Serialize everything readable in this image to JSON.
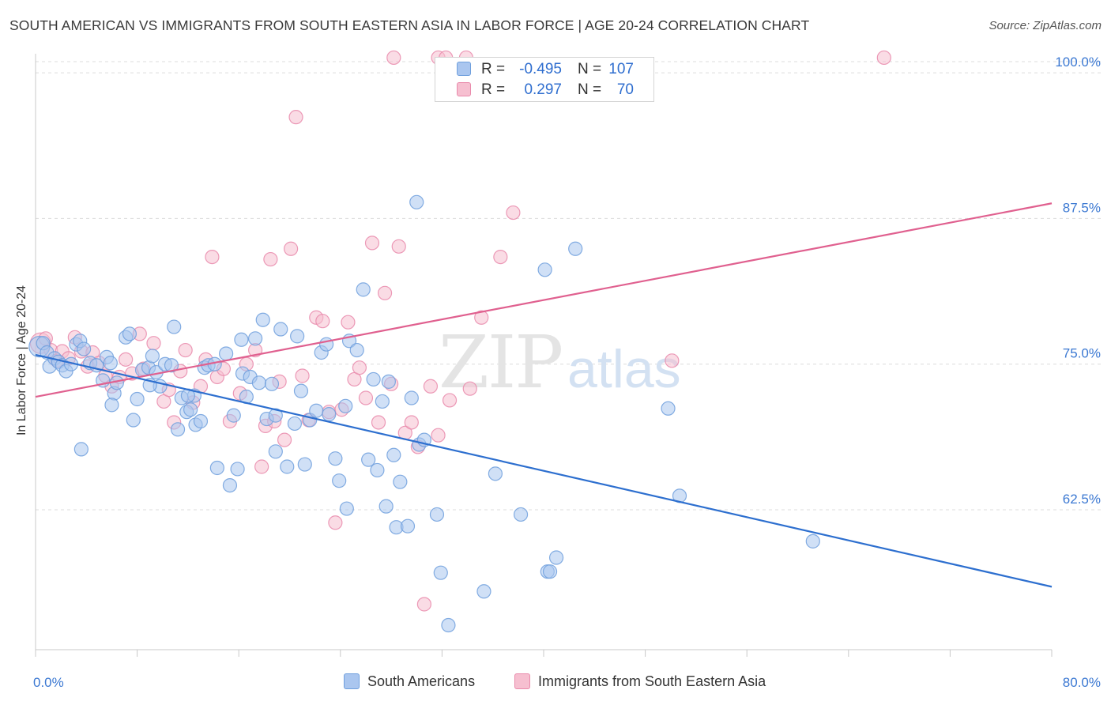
{
  "title": "SOUTH AMERICAN VS IMMIGRANTS FROM SOUTH EASTERN ASIA IN LABOR FORCE | AGE 20-24 CORRELATION CHART",
  "source": "Source: ZipAtlas.com",
  "watermark": {
    "zip": "ZIP",
    "atlas": "atlas"
  },
  "legend": {
    "r_label": "R =",
    "n_label": "N =",
    "series": [
      {
        "name": "South Americans",
        "r": "-0.495",
        "n": "107"
      },
      {
        "name": "Immigrants from South Eastern Asia",
        "r": "0.297",
        "n": "70"
      }
    ]
  },
  "colors": {
    "blue_fill": "#aac6ef",
    "blue_stroke": "#6f9fdd",
    "blue_line": "#2d6fcf",
    "pink_fill": "#f6bfd0",
    "pink_stroke": "#e98aab",
    "pink_line": "#e0608f",
    "axis_text": "#3b78d2",
    "grid": "#dcdcdc"
  },
  "chart_data": {
    "type": "scatter",
    "title": "SOUTH AMERICAN VS IMMIGRANTS FROM SOUTH EASTERN ASIA IN LABOR FORCE | AGE 20-24 CORRELATION CHART",
    "xlabel": "",
    "ylabel": "In Labor Force | Age 20-24",
    "xlim": [
      0,
      80
    ],
    "ylim": [
      50.5,
      101.5
    ],
    "x_tick_labels": [
      {
        "value": 0,
        "label": "0.0%"
      },
      {
        "value": 80,
        "label": "80.0%"
      }
    ],
    "y_ticks": [
      {
        "value": 62.5,
        "label": "62.5%"
      },
      {
        "value": 75.0,
        "label": "75.0%"
      },
      {
        "value": 87.5,
        "label": "87.5%"
      },
      {
        "value": 100.0,
        "label": "100.0%"
      }
    ],
    "x_minor_ticks": [
      0,
      8,
      16,
      24,
      32,
      40,
      48,
      56,
      64,
      72,
      80
    ],
    "grid": true,
    "series": [
      {
        "name": "South Americans",
        "color": "blue",
        "trendline": {
          "x": [
            0,
            80
          ],
          "y": [
            75.8,
            55.9
          ]
        },
        "points": [
          [
            0.3,
            76.5
          ],
          [
            0.6,
            76.8
          ],
          [
            0.9,
            76.0
          ],
          [
            1.1,
            74.8
          ],
          [
            1.5,
            75.5
          ],
          [
            1.8,
            75.2
          ],
          [
            2.1,
            74.9
          ],
          [
            2.4,
            74.4
          ],
          [
            2.8,
            75.0
          ],
          [
            3.2,
            76.7
          ],
          [
            3.5,
            77.0
          ],
          [
            3.8,
            76.3
          ],
          [
            4.3,
            75.1
          ],
          [
            4.8,
            74.9
          ],
          [
            5.3,
            73.6
          ],
          [
            5.6,
            75.6
          ],
          [
            5.9,
            75.1
          ],
          [
            6.2,
            72.5
          ],
          [
            6.4,
            73.4
          ],
          [
            7.1,
            77.3
          ],
          [
            7.4,
            77.6
          ],
          [
            7.7,
            70.2
          ],
          [
            8.0,
            72.0
          ],
          [
            8.4,
            74.5
          ],
          [
            8.9,
            74.7
          ],
          [
            9.2,
            75.7
          ],
          [
            9.5,
            74.3
          ],
          [
            9.8,
            73.1
          ],
          [
            10.2,
            75.0
          ],
          [
            10.7,
            74.9
          ],
          [
            10.9,
            78.2
          ],
          [
            11.2,
            69.4
          ],
          [
            11.5,
            72.1
          ],
          [
            11.9,
            70.9
          ],
          [
            12.2,
            71.1
          ],
          [
            12.5,
            72.3
          ],
          [
            12.6,
            69.8
          ],
          [
            13.0,
            70.1
          ],
          [
            13.3,
            74.7
          ],
          [
            13.6,
            74.9
          ],
          [
            14.1,
            75.0
          ],
          [
            14.3,
            66.1
          ],
          [
            15.0,
            75.9
          ],
          [
            15.3,
            64.6
          ],
          [
            15.6,
            70.6
          ],
          [
            15.9,
            66.0
          ],
          [
            16.3,
            74.2
          ],
          [
            16.6,
            72.2
          ],
          [
            16.9,
            73.9
          ],
          [
            17.3,
            77.2
          ],
          [
            17.6,
            73.4
          ],
          [
            17.9,
            78.8
          ],
          [
            18.2,
            70.3
          ],
          [
            18.6,
            73.3
          ],
          [
            18.9,
            70.6
          ],
          [
            18.9,
            67.5
          ],
          [
            19.3,
            78.0
          ],
          [
            19.8,
            66.2
          ],
          [
            20.4,
            69.9
          ],
          [
            20.6,
            77.4
          ],
          [
            20.9,
            72.7
          ],
          [
            21.2,
            66.4
          ],
          [
            21.6,
            70.2
          ],
          [
            22.1,
            71.0
          ],
          [
            22.5,
            76.0
          ],
          [
            22.9,
            76.7
          ],
          [
            23.1,
            70.7
          ],
          [
            23.6,
            66.9
          ],
          [
            23.9,
            65.0
          ],
          [
            24.4,
            71.4
          ],
          [
            24.5,
            62.6
          ],
          [
            24.7,
            77.0
          ],
          [
            25.3,
            76.2
          ],
          [
            25.8,
            81.4
          ],
          [
            26.2,
            66.8
          ],
          [
            26.6,
            73.7
          ],
          [
            26.9,
            65.9
          ],
          [
            27.3,
            71.8
          ],
          [
            27.6,
            62.8
          ],
          [
            27.8,
            73.5
          ],
          [
            28.2,
            67.2
          ],
          [
            28.4,
            61.0
          ],
          [
            28.7,
            64.9
          ],
          [
            29.3,
            61.1
          ],
          [
            29.6,
            72.1
          ],
          [
            30.0,
            88.9
          ],
          [
            30.2,
            68.1
          ],
          [
            30.6,
            68.5
          ],
          [
            31.6,
            62.1
          ],
          [
            31.9,
            57.1
          ],
          [
            32.5,
            52.6
          ],
          [
            35.3,
            55.5
          ],
          [
            36.2,
            65.6
          ],
          [
            38.2,
            62.1
          ],
          [
            40.1,
            83.1
          ],
          [
            40.3,
            57.2
          ],
          [
            40.5,
            57.2
          ],
          [
            41.0,
            58.4
          ],
          [
            42.5,
            84.9
          ],
          [
            49.8,
            71.2
          ],
          [
            50.7,
            63.7
          ],
          [
            61.2,
            59.8
          ],
          [
            3.6,
            67.7
          ],
          [
            12.0,
            72.3
          ],
          [
            16.2,
            77.1
          ],
          [
            9.0,
            73.2
          ],
          [
            6.0,
            71.5
          ]
        ]
      },
      {
        "name": "Immigrants from South Eastern Asia",
        "color": "pink",
        "trendline": {
          "x": [
            0,
            80
          ],
          "y": [
            72.2,
            88.8
          ]
        },
        "points": [
          [
            0.4,
            76.8
          ],
          [
            0.8,
            77.2
          ],
          [
            1.2,
            76.2
          ],
          [
            1.7,
            75.3
          ],
          [
            2.1,
            76.1
          ],
          [
            2.6,
            75.5
          ],
          [
            3.1,
            77.3
          ],
          [
            3.6,
            76.1
          ],
          [
            4.1,
            74.8
          ],
          [
            4.5,
            76.0
          ],
          [
            5.0,
            75.1
          ],
          [
            5.5,
            74.0
          ],
          [
            6.0,
            73.1
          ],
          [
            6.6,
            73.9
          ],
          [
            7.1,
            75.4
          ],
          [
            7.6,
            74.2
          ],
          [
            8.2,
            77.6
          ],
          [
            8.5,
            74.6
          ],
          [
            9.3,
            76.8
          ],
          [
            10.1,
            71.8
          ],
          [
            10.5,
            72.8
          ],
          [
            10.9,
            70.0
          ],
          [
            11.4,
            74.4
          ],
          [
            11.8,
            76.2
          ],
          [
            12.4,
            71.7
          ],
          [
            13.0,
            73.1
          ],
          [
            13.4,
            75.4
          ],
          [
            13.9,
            84.2
          ],
          [
            14.3,
            73.9
          ],
          [
            14.8,
            74.6
          ],
          [
            15.3,
            70.1
          ],
          [
            16.1,
            72.5
          ],
          [
            16.6,
            75.0
          ],
          [
            17.3,
            76.2
          ],
          [
            17.8,
            66.2
          ],
          [
            18.1,
            69.7
          ],
          [
            18.5,
            84.0
          ],
          [
            18.8,
            70.1
          ],
          [
            19.2,
            73.5
          ],
          [
            19.6,
            68.5
          ],
          [
            20.1,
            84.9
          ],
          [
            20.5,
            96.2
          ],
          [
            21.0,
            74.0
          ],
          [
            21.5,
            70.2
          ],
          [
            22.1,
            79.0
          ],
          [
            22.6,
            78.7
          ],
          [
            23.1,
            70.9
          ],
          [
            23.6,
            61.4
          ],
          [
            24.1,
            71.1
          ],
          [
            24.6,
            78.6
          ],
          [
            25.1,
            73.7
          ],
          [
            25.5,
            74.7
          ],
          [
            26.0,
            72.1
          ],
          [
            26.5,
            85.4
          ],
          [
            27.0,
            70.0
          ],
          [
            27.5,
            81.1
          ],
          [
            28.0,
            73.3
          ],
          [
            28.6,
            85.1
          ],
          [
            29.1,
            69.1
          ],
          [
            29.6,
            70.0
          ],
          [
            30.1,
            67.9
          ],
          [
            30.6,
            54.4
          ],
          [
            31.1,
            73.1
          ],
          [
            31.7,
            68.9
          ],
          [
            32.6,
            71.9
          ],
          [
            34.2,
            72.9
          ],
          [
            35.1,
            79.0
          ],
          [
            36.6,
            84.2
          ],
          [
            37.6,
            88.0
          ],
          [
            50.1,
            75.3
          ]
        ],
        "clipped_at_top": [
          [
            28.2,
            101.3
          ],
          [
            31.7,
            101.3
          ],
          [
            32.3,
            101.3
          ],
          [
            33.9,
            101.3
          ],
          [
            66.8,
            101.3
          ]
        ]
      }
    ]
  }
}
